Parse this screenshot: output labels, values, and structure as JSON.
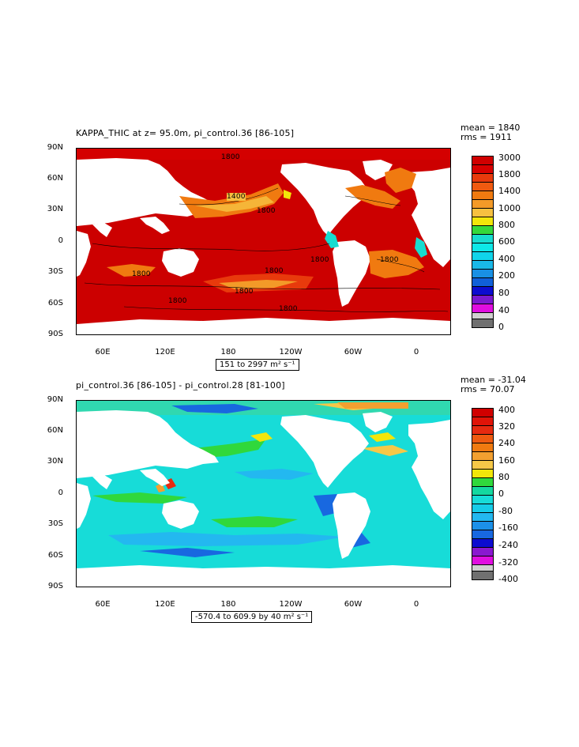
{
  "panels": [
    {
      "title": "KAPPA_THIC at z=  95.0m, pi_control.36 [86-105]",
      "mean": "mean = 1840",
      "rms": "rms = 1911",
      "range": "151 to 2997 m² s⁻¹",
      "lat_labels": [
        "90N",
        "60N",
        "30N",
        "0",
        "30S",
        "60S",
        "90S"
      ],
      "lon_labels": [
        "60E",
        "120E",
        "180",
        "120W",
        "60W",
        "0"
      ],
      "contour_labels": [
        "1800",
        "1400",
        "1800",
        "1800",
        "1800",
        "1800",
        "1800",
        "1800",
        "1800",
        "1800"
      ],
      "legend": {
        "labels": [
          "3000",
          "1800",
          "1400",
          "1000",
          "800",
          "600",
          "400",
          "200",
          "80",
          "40",
          "0"
        ],
        "colors": [
          "#d00000",
          "#e83a0c",
          "#f07a10",
          "#f39a28",
          "#f6c040",
          "#f2e60a",
          "#34d83c",
          "#17dcd0",
          "#0ed0ea",
          "#19a2e4",
          "#1060d8",
          "#0c0cd0",
          "#7a1ad0",
          "#e00ee0",
          "#d0d0d0",
          "#707070"
        ]
      }
    },
    {
      "title": "pi_control.36 [86-105] - pi_control.28 [81-100]",
      "mean": "mean = -31.04",
      "rms": "rms = 70.07",
      "range": "-570.4 to 609.9 by 40 m² s⁻¹",
      "lat_labels": [
        "90N",
        "60N",
        "30N",
        "0",
        "30S",
        "60S",
        "90S"
      ],
      "lon_labels": [
        "60E",
        "120E",
        "180",
        "120W",
        "60W",
        "0"
      ],
      "legend": {
        "labels": [
          "400",
          "320",
          "240",
          "160",
          "80",
          "0",
          "-80",
          "-160",
          "-240",
          "-320",
          "-400"
        ],
        "colors": [
          "#d00000",
          "#e62a10",
          "#f07a10",
          "#f3a030",
          "#f6c848",
          "#f2e60a",
          "#30d83c",
          "#14d8a0",
          "#17dcd8",
          "#23b8f0",
          "#1868e0",
          "#0c0cd0",
          "#8a18d0",
          "#e00ee0",
          "#d0d0d0",
          "#707070",
          "#606060"
        ]
      }
    }
  ]
}
